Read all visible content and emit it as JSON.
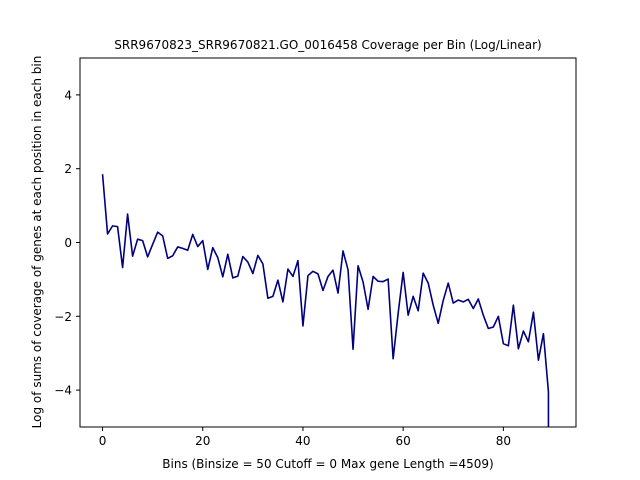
{
  "chart_data": {
    "type": "line",
    "title": "SRR9670823_SRR9670821.GO_0016458 Coverage per Bin (Log/Linear)",
    "xlabel": "Bins  (Binsize = 50 Cutoff = 0 Max gene Length =4509)",
    "ylabel": "Log of sums of coverage of genes at each position in each bin",
    "xlim": [
      -4.5,
      94.5
    ],
    "ylim": [
      -5,
      5
    ],
    "xticks": [
      0,
      20,
      40,
      60,
      80
    ],
    "yticks": [
      -4,
      -2,
      0,
      2,
      4
    ],
    "grid": false,
    "line_color": "#00007f",
    "series": [
      {
        "x": [
          0,
          1,
          2,
          3,
          4,
          5,
          6,
          7,
          8,
          9,
          10,
          11,
          12,
          13,
          14,
          15,
          16,
          17,
          18,
          19,
          20,
          21,
          22,
          23,
          24,
          25,
          26,
          27,
          28,
          29,
          30,
          31,
          32,
          33,
          34,
          35,
          36,
          37,
          38,
          39,
          40,
          41,
          42,
          43,
          44,
          45,
          46,
          47,
          48,
          49,
          50,
          51,
          52,
          53,
          54,
          55,
          56,
          57,
          58,
          59,
          60,
          61,
          62,
          63,
          64,
          65,
          66,
          67,
          68,
          69,
          70,
          71,
          72,
          73,
          74,
          75,
          76,
          77,
          78,
          79,
          80,
          81,
          82,
          83,
          84,
          85,
          86,
          87,
          88,
          89
        ],
        "values": [
          1.85,
          0.23,
          0.45,
          0.43,
          -0.68,
          0.77,
          -0.37,
          0.09,
          0.05,
          -0.39,
          -0.05,
          0.28,
          0.18,
          -0.43,
          -0.36,
          -0.12,
          -0.16,
          -0.21,
          0.22,
          -0.11,
          0.05,
          -0.73,
          -0.14,
          -0.41,
          -0.93,
          -0.32,
          -0.96,
          -0.91,
          -0.38,
          -0.53,
          -0.84,
          -0.35,
          -0.58,
          -1.51,
          -1.46,
          -1.02,
          -1.61,
          -0.72,
          -0.92,
          -0.49,
          -2.26,
          -0.9,
          -0.78,
          -0.85,
          -1.3,
          -0.92,
          -0.75,
          -1.37,
          -0.23,
          -0.74,
          -2.89,
          -0.63,
          -1.07,
          -1.81,
          -0.92,
          -1.05,
          -1.06,
          -0.99,
          -3.15,
          -1.92,
          -0.81,
          -1.97,
          -1.46,
          -1.85,
          -0.83,
          -1.1,
          -1.7,
          -2.19,
          -1.57,
          -1.1,
          -1.64,
          -1.56,
          -1.61,
          -1.54,
          -1.79,
          -1.53,
          -1.97,
          -2.33,
          -2.29,
          -2.0,
          -2.74,
          -2.8,
          -1.7,
          -2.88,
          -2.4,
          -2.69,
          -1.89,
          -3.19,
          -2.47,
          -4.05
        ]
      }
    ]
  }
}
